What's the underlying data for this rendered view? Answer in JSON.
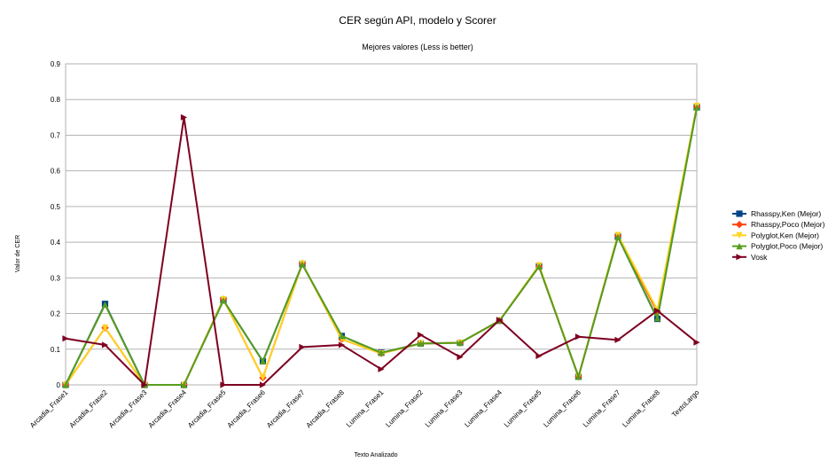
{
  "chart_data": {
    "type": "line",
    "title": "CER según API, modelo y Scorer",
    "subtitle": "Mejores valores (Less is better)",
    "xlabel": "Texto Analizado",
    "ylabel": "Valor de CER",
    "ylim": [
      0,
      0.9
    ],
    "yticks": [
      "0",
      "0.1",
      "0.2",
      "0.3",
      "0.4",
      "0.5",
      "0.6",
      "0.7",
      "0.8",
      "0.9"
    ],
    "grid": true,
    "legend_position": "right",
    "categories": [
      "Arcadia_Frase1",
      "Arcadia_Frase2",
      "Arcadia_Frase3",
      "Arcadia_Frase4",
      "Arcadia_Frase5",
      "Arcadia_Frase6",
      "Arcadia_Frase7",
      "Arcadia_Frase8",
      "Lumina_Frase1",
      "Lumina_Frase2",
      "Lumina_Frase3",
      "Lumina_Frase4",
      "Lumina_Frase5",
      "Lumina_Frase6",
      "Lumina_Frase7",
      "Lumina_Frase8",
      "TextoLargo"
    ],
    "series": [
      {
        "name": "Rhasspy,Ken (Mejor)",
        "color": "#004586",
        "marker": "square",
        "values": [
          0,
          0.227,
          0,
          0,
          0.237,
          0.066,
          0.338,
          0.137,
          0.09,
          0.116,
          0.118,
          0.18,
          0.332,
          0.023,
          0.415,
          0.185,
          0.778
        ]
      },
      {
        "name": "Rhasspy,Poco (Mejor)",
        "color": "#ff420e",
        "marker": "diamond",
        "values": [
          0,
          0.16,
          0,
          0,
          0.24,
          0.02,
          0.34,
          0.128,
          0.088,
          0.116,
          0.118,
          0.18,
          0.332,
          0.023,
          0.418,
          0.205,
          0.78
        ]
      },
      {
        "name": "Polyglot,Ken (Mejor)",
        "color": "#ffd320",
        "marker": "triangle-down",
        "values": [
          0,
          0.16,
          0,
          0,
          0.24,
          0.02,
          0.34,
          0.128,
          0.088,
          0.116,
          0.118,
          0.18,
          0.335,
          0.023,
          0.42,
          0.21,
          0.782
        ]
      },
      {
        "name": "Polyglot,Poco (Mejor)",
        "color": "#579d1c",
        "marker": "triangle-up",
        "values": [
          0,
          0.225,
          0,
          0,
          0.237,
          0.066,
          0.338,
          0.137,
          0.09,
          0.116,
          0.118,
          0.18,
          0.332,
          0.023,
          0.415,
          0.187,
          0.778
        ]
      },
      {
        "name": "Vosk",
        "color": "#7e0021",
        "marker": "triangle-right",
        "values": [
          0.13,
          0.112,
          0,
          0.75,
          0,
          0,
          0.106,
          0.112,
          0.044,
          0.14,
          0.078,
          0.182,
          0.081,
          0.135,
          0.126,
          0.208,
          0.119
        ]
      }
    ]
  }
}
